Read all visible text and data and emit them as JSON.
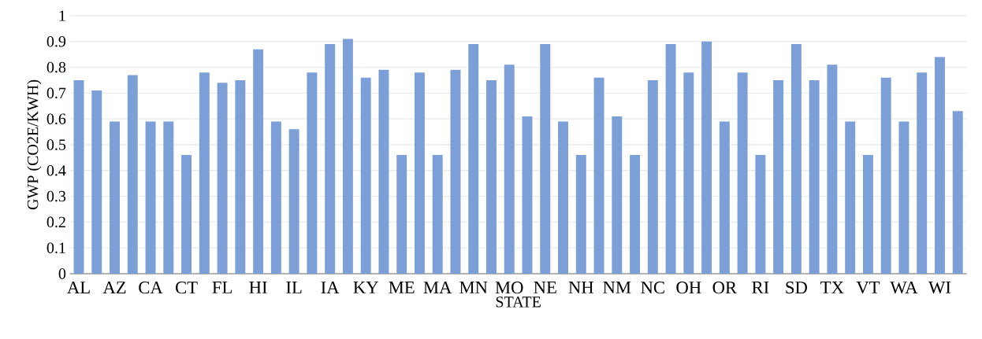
{
  "chart_data": {
    "type": "bar",
    "xlabel": "STATE",
    "ylabel": "GWP (CO2E/KWH)",
    "categories": [
      "AL",
      null,
      "AZ",
      null,
      "CA",
      null,
      "CT",
      null,
      "FL",
      null,
      "HI",
      null,
      "IL",
      null,
      "IA",
      null,
      "KY",
      null,
      "ME",
      null,
      "MA",
      null,
      "MN",
      null,
      "MO",
      null,
      "NE",
      null,
      "NH",
      null,
      "NM",
      null,
      "NC",
      null,
      "OH",
      null,
      "OR",
      null,
      "RI",
      null,
      "SD",
      null,
      "TX",
      null,
      "VT",
      null,
      "WA",
      null,
      "WI",
      null
    ],
    "values": [
      0.75,
      0.71,
      0.59,
      0.77,
      0.59,
      0.59,
      0.46,
      0.78,
      0.74,
      0.75,
      0.87,
      0.59,
      0.56,
      0.78,
      0.89,
      0.91,
      0.76,
      0.79,
      0.46,
      0.78,
      0.46,
      0.79,
      0.89,
      0.75,
      0.81,
      0.61,
      0.89,
      0.59,
      0.46,
      0.76,
      0.61,
      0.46,
      0.75,
      0.89,
      0.78,
      0.9,
      0.59,
      0.78,
      0.46,
      0.75,
      0.89,
      0.75,
      0.81,
      0.59,
      0.46,
      0.76,
      0.59,
      0.78,
      0.84,
      0.63
    ],
    "color": "#7b9fd6",
    "ylim": [
      0,
      1
    ],
    "yticks": [
      0,
      0.1,
      0.2,
      0.3,
      0.4,
      0.5,
      0.6,
      0.7,
      0.8,
      0.9,
      1
    ],
    "grid": "y"
  }
}
